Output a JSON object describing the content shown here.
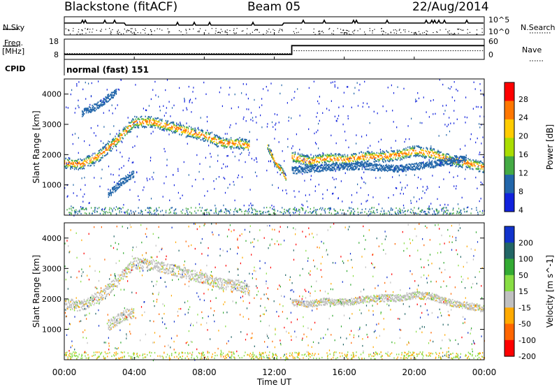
{
  "header": {
    "radar": "Blackstone (fitACF)",
    "beam": "Beam 05",
    "date": "22/Aug/2014"
  },
  "side_labels": {
    "nsky": "N.Sky",
    "nsearch": "N.Search",
    "freq": "Freq.",
    "freq_unit": "[MHz]",
    "nave": "Nave",
    "cpid": "CPID"
  },
  "cpid_text": "normal (fast) 151",
  "chart_data": [
    {
      "type": "line",
      "panel": "noise",
      "yticks_right": [
        "10^5",
        "10^0"
      ],
      "series": [
        {
          "name": "N.Sky",
          "style": "solid"
        },
        {
          "name": "N.Search",
          "style": "dotted"
        }
      ]
    },
    {
      "type": "line",
      "panel": "frequency",
      "yticks_left": [
        "18",
        "8"
      ],
      "yticks_right": [
        "60",
        "0"
      ],
      "series": [
        {
          "name": "Freq.",
          "style": "solid",
          "x": [
            "00:00",
            "13:00",
            "13:00",
            "24:00"
          ],
          "y": [
            9.5,
            9.5,
            15.5,
            15.5
          ]
        },
        {
          "name": "Nave",
          "style": "dotted",
          "x": [
            "00:00",
            "13:00",
            "13:00",
            "24:00"
          ],
          "y": [
            12,
            12,
            24,
            24
          ]
        }
      ]
    },
    {
      "type": "heatmap",
      "panel": "power",
      "ylabel": "Slant Range [km]",
      "yticks": [
        "1000",
        "2000",
        "3000",
        "4000"
      ],
      "ylim": [
        0,
        4500
      ],
      "colorbar_label": "Power [dB]",
      "colorbar_ticks": [
        "28",
        "24",
        "20",
        "16",
        "12",
        "8",
        "4"
      ],
      "colors": [
        "#ff0000",
        "#ff7700",
        "#ffcc00",
        "#aadd00",
        "#44aa44",
        "#2266aa",
        "#1122dd"
      ],
      "bands": [
        {
          "x": [
            0.0,
            1.0,
            2.0,
            3.0,
            4.0,
            5.0,
            6.0,
            7.0,
            8.0,
            9.0,
            10.0,
            10.6
          ],
          "y": [
            1750,
            1700,
            2000,
            2500,
            3100,
            3100,
            2950,
            2800,
            2650,
            2400,
            2400,
            2300
          ]
        },
        {
          "x": [
            11.6,
            12.0,
            12.4,
            12.7
          ],
          "y": [
            2300,
            1800,
            1500,
            1200
          ]
        },
        {
          "x": [
            13.0,
            14.0,
            15.0,
            16.0,
            17.0,
            18.0,
            19.0,
            20.0,
            21.0,
            22.0,
            23.0,
            24.0
          ],
          "y": [
            1950,
            1800,
            1900,
            1850,
            1950,
            1950,
            2000,
            2150,
            2050,
            1850,
            1750,
            1600
          ]
        },
        {
          "x": [
            1.0,
            1.8,
            2.5,
            3.0
          ],
          "y": [
            3400,
            3600,
            3900,
            4100
          ]
        },
        {
          "x": [
            2.5,
            3.2,
            4.0
          ],
          "y": [
            700,
            1100,
            1400
          ]
        },
        {
          "x": [
            13.0,
            15.0,
            17.0,
            19.0,
            21.0,
            23.0
          ],
          "y": [
            1500,
            1600,
            1650,
            1550,
            1700,
            1900
          ]
        }
      ]
    },
    {
      "type": "heatmap",
      "panel": "velocity",
      "ylabel": "Slant Range [km]",
      "yticks": [
        "1000",
        "2000",
        "3000",
        "4000"
      ],
      "ylim": [
        0,
        4500
      ],
      "colorbar_label": "Velocity [m s^-1]",
      "colorbar_ticks": [
        "200",
        "100",
        "50",
        "15",
        "-15",
        "-50",
        "-100",
        "-200"
      ],
      "colors": [
        "#1133cc",
        "#226666",
        "#33aa33",
        "#88dd44",
        "#c0c0c0",
        "#ffaa00",
        "#ff6600",
        "#ff0000"
      ],
      "bands": [
        {
          "x": [
            0.0,
            1.0,
            2.0,
            3.0,
            4.0,
            5.0,
            6.0,
            7.0,
            8.0,
            9.0,
            10.0,
            10.6
          ],
          "y": [
            1850,
            1800,
            2100,
            2600,
            3200,
            3150,
            3000,
            2850,
            2700,
            2500,
            2450,
            2300
          ]
        },
        {
          "x": [
            13.0,
            14.0,
            15.0,
            16.0,
            17.0,
            18.0,
            19.0,
            20.0,
            21.0,
            22.0,
            23.0,
            24.0
          ],
          "y": [
            1900,
            1850,
            1950,
            1900,
            2000,
            2050,
            2050,
            2150,
            2100,
            1900,
            1800,
            1700
          ]
        },
        {
          "x": [
            2.5,
            3.2,
            4.0
          ],
          "y": [
            1150,
            1400,
            1600
          ]
        }
      ]
    }
  ],
  "xaxis": {
    "label": "Time UT",
    "ticks": [
      "00:00",
      "04:00",
      "08:00",
      "12:00",
      "16:00",
      "20:00",
      "00:00"
    ]
  }
}
